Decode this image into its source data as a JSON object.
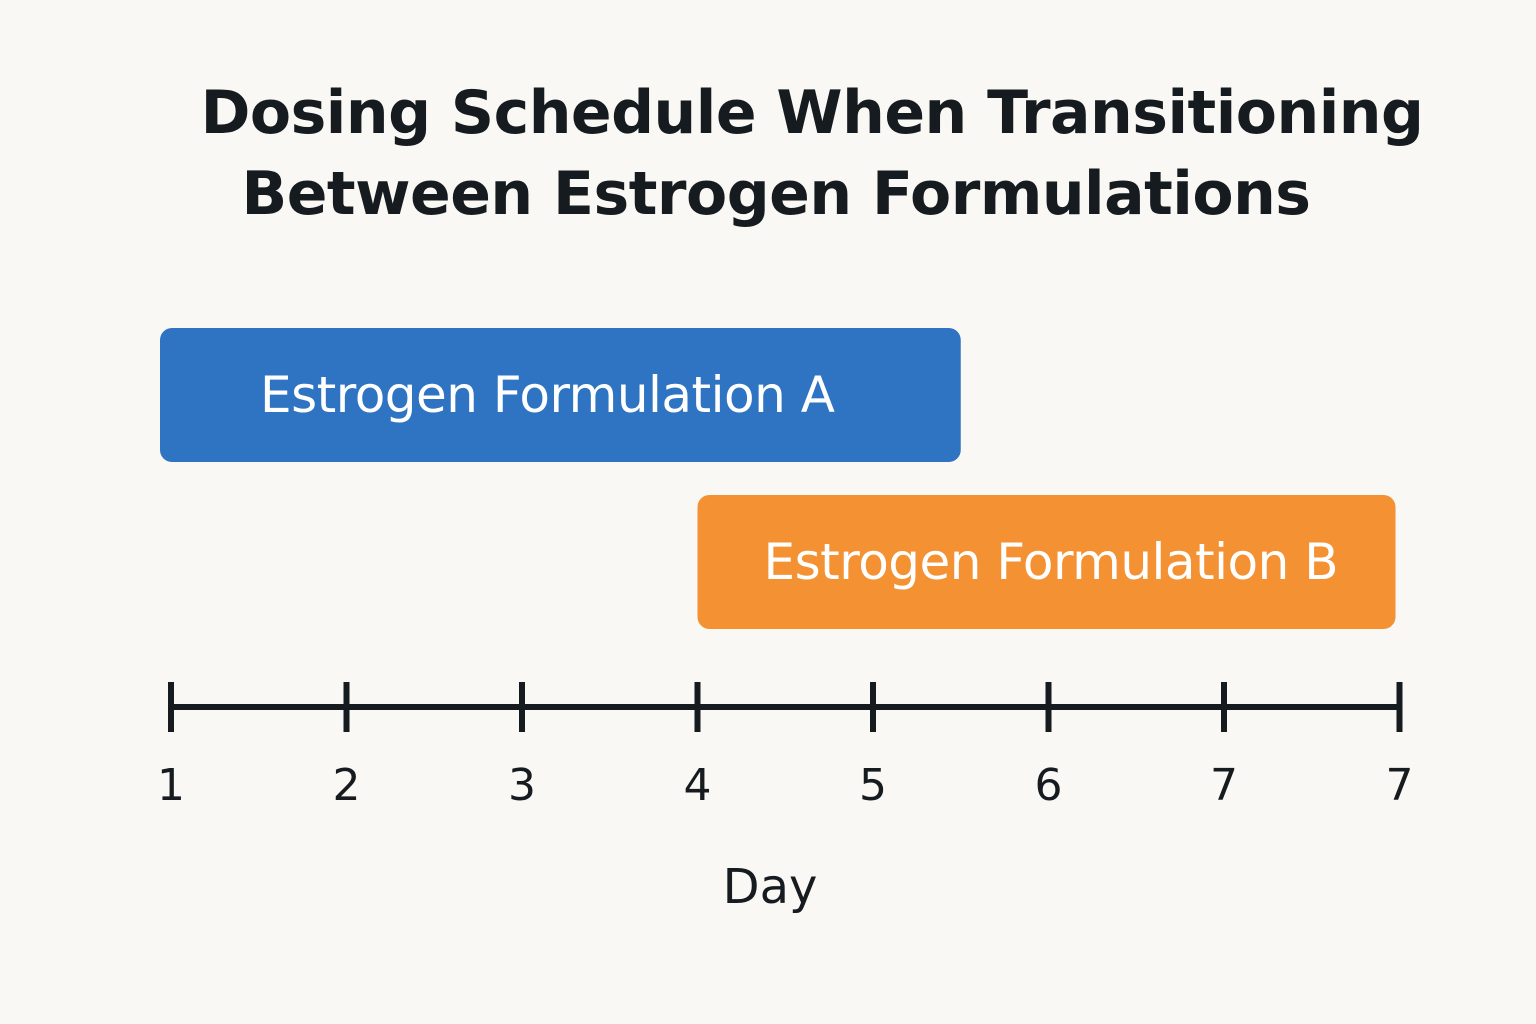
{
  "chart_data": {
    "type": "gantt",
    "title_lines": [
      "Dosing Schedule When Transitioning",
      "Between Estrogen Formulations"
    ],
    "xlabel": "Day",
    "tick_labels": [
      "1",
      "2",
      "3",
      "4",
      "5",
      "6",
      "7",
      "7"
    ],
    "series": [
      {
        "name": "Estrogen Formulation A",
        "start": 1,
        "end": 5.5,
        "color": "#2e74c2"
      },
      {
        "name": "Estrogen Formulation B",
        "start": 4,
        "end": 8,
        "color": "#f39133"
      }
    ],
    "axis_color": "#161b1f"
  }
}
